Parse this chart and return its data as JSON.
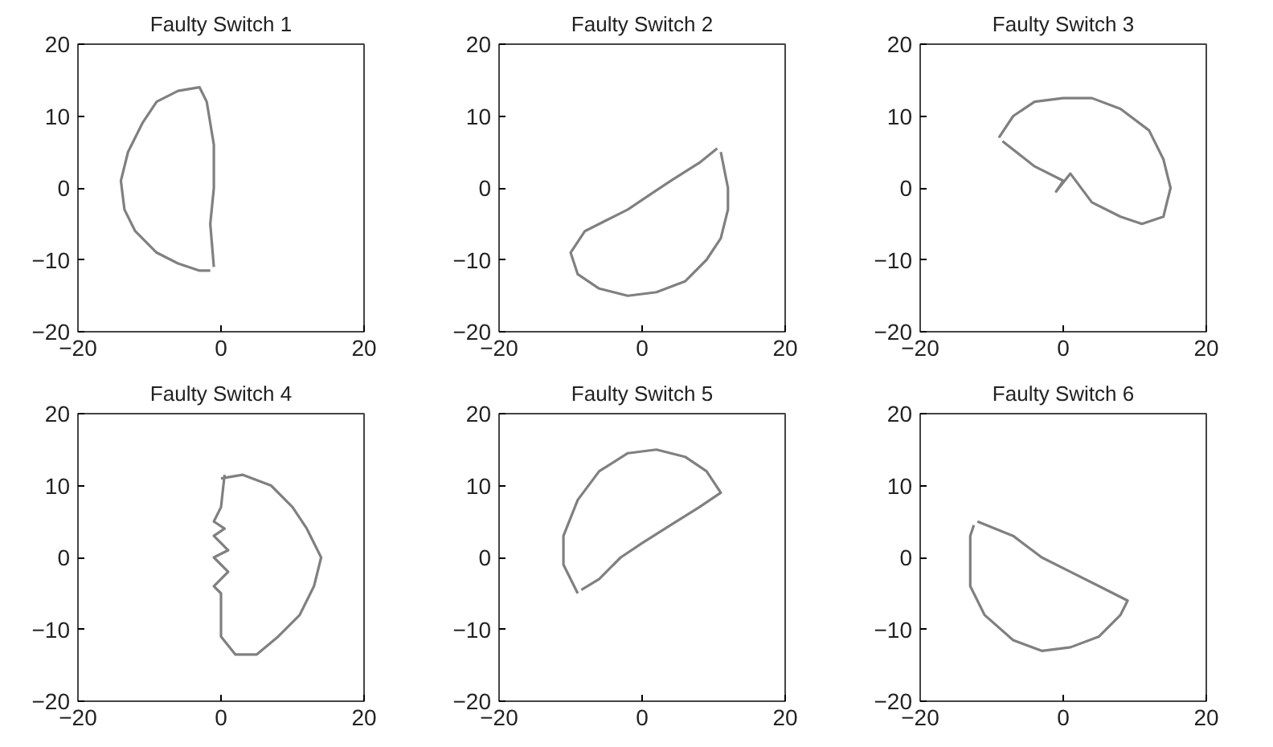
{
  "chart_data": [
    {
      "type": "line",
      "title": "Faulty Switch 1",
      "xlim": [
        -20,
        20
      ],
      "ylim": [
        -20,
        20
      ],
      "xticks": [
        -20,
        0,
        20
      ],
      "yticks": [
        -20,
        -10,
        0,
        10,
        20
      ],
      "grid": false,
      "series": [
        {
          "color": "#808080",
          "x": [
            -1,
            -1.5,
            -1,
            -1,
            -2,
            -3,
            -6,
            -9,
            -11,
            -13,
            -14,
            -13.5,
            -12,
            -9,
            -6,
            -3,
            -1.5
          ],
          "values": [
            -11,
            -5,
            0,
            6,
            12,
            14,
            13.5,
            12,
            9,
            5,
            1,
            -3,
            -6,
            -9,
            -10.5,
            -11.5,
            -11.5
          ]
        }
      ]
    },
    {
      "type": "line",
      "title": "Faulty Switch 2",
      "xlim": [
        -20,
        20
      ],
      "ylim": [
        -20,
        20
      ],
      "xticks": [
        -20,
        0,
        20
      ],
      "yticks": [
        -20,
        -10,
        0,
        10,
        20
      ],
      "grid": false,
      "series": [
        {
          "color": "#808080",
          "x": [
            11,
            12,
            12,
            11,
            9,
            6,
            2,
            -2,
            -6,
            -9,
            -10,
            -8,
            -5,
            -2,
            1,
            4,
            8,
            10.5
          ],
          "values": [
            5,
            0,
            -3,
            -7,
            -10,
            -13,
            -14.5,
            -15,
            -14,
            -12,
            -9,
            -6,
            -4.5,
            -3,
            -1,
            1,
            3.5,
            5.5
          ]
        }
      ]
    },
    {
      "type": "line",
      "title": "Faulty Switch 3",
      "xlim": [
        -20,
        20
      ],
      "ylim": [
        -20,
        20
      ],
      "xticks": [
        -20,
        0,
        20
      ],
      "yticks": [
        -20,
        -10,
        0,
        10,
        20
      ],
      "grid": false,
      "series": [
        {
          "color": "#808080",
          "x": [
            -9,
            -7,
            -4,
            0,
            4,
            8,
            12,
            14,
            15,
            14,
            11,
            8,
            4,
            1,
            -1,
            0,
            -4,
            -8.5
          ],
          "values": [
            7,
            10,
            12,
            12.5,
            12.5,
            11,
            8,
            4,
            0,
            -4,
            -5,
            -4,
            -2,
            2,
            -0.5,
            1,
            3,
            6.5
          ]
        }
      ]
    },
    {
      "type": "line",
      "title": "Faulty Switch 4",
      "xlim": [
        -20,
        20
      ],
      "ylim": [
        -20,
        20
      ],
      "xticks": [
        -20,
        0,
        20
      ],
      "yticks": [
        -20,
        -10,
        0,
        10,
        20
      ],
      "grid": false,
      "series": [
        {
          "color": "#808080",
          "x": [
            0,
            3,
            7,
            10,
            12,
            14,
            13,
            11,
            8,
            5,
            2,
            0,
            0,
            -1,
            1,
            -1,
            1,
            -1,
            0.5,
            -1,
            0,
            0.5
          ],
          "values": [
            11,
            11.5,
            10,
            7,
            4,
            0,
            -4,
            -8,
            -11,
            -13.5,
            -13.5,
            -11,
            -5,
            -4,
            -2,
            0,
            1,
            3,
            4,
            5,
            7,
            11.5
          ]
        }
      ]
    },
    {
      "type": "line",
      "title": "Faulty Switch 5",
      "xlim": [
        -20,
        20
      ],
      "ylim": [
        -20,
        20
      ],
      "xticks": [
        -20,
        0,
        20
      ],
      "yticks": [
        -20,
        -10,
        0,
        10,
        20
      ],
      "grid": false,
      "series": [
        {
          "color": "#808080",
          "x": [
            -9,
            -11,
            -11,
            -9,
            -6,
            -2,
            2,
            6,
            9,
            11,
            8,
            4,
            0,
            -3,
            -6,
            -8.5
          ],
          "values": [
            -5,
            -1,
            3,
            8,
            12,
            14.5,
            15,
            14,
            12,
            9,
            7,
            4.5,
            2,
            0,
            -3,
            -4.5
          ]
        }
      ]
    },
    {
      "type": "line",
      "title": "Faulty Switch 6",
      "xlim": [
        -20,
        20
      ],
      "ylim": [
        -20,
        20
      ],
      "xticks": [
        -20,
        0,
        20
      ],
      "yticks": [
        -20,
        -10,
        0,
        10,
        20
      ],
      "grid": false,
      "series": [
        {
          "color": "#808080",
          "x": [
            -12,
            -7,
            -3,
            1,
            5,
            9,
            8,
            5,
            1,
            -3,
            -7,
            -11,
            -13,
            -13,
            -13,
            -12.5
          ],
          "values": [
            5,
            3,
            0,
            -2,
            -4,
            -6,
            -8,
            -11,
            -12.5,
            -13,
            -11.5,
            -8,
            -4,
            0,
            3,
            4.5
          ]
        }
      ]
    }
  ]
}
